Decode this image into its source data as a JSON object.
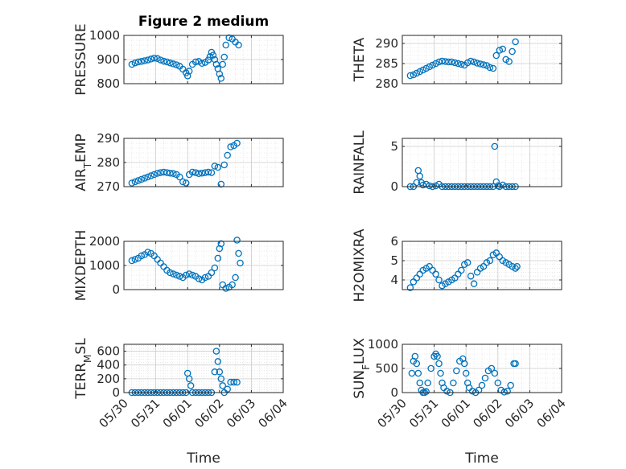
{
  "figure": {
    "marker_color": "#0072BD",
    "axis_color": "#262626",
    "grid_color": "#d9d9d9"
  },
  "x_axis": {
    "label": "Time",
    "ticks": [
      0,
      1,
      2,
      3,
      4,
      5
    ],
    "tick_labels": [
      "05/30",
      "05/31",
      "06/01",
      "06/02",
      "06/03",
      "06/04"
    ],
    "range": [
      0,
      5
    ]
  },
  "chart_data": [
    {
      "type": "scatter",
      "title": "Figure 2 medium",
      "ylabel": "PRESSURE",
      "ylim": [
        800,
        1000
      ],
      "yticks": [
        800,
        900,
        1000
      ],
      "ytick_labels": [
        "800",
        "900",
        "1000"
      ],
      "grid": true,
      "x": [
        0.25,
        0.35,
        0.45,
        0.55,
        0.65,
        0.75,
        0.85,
        0.95,
        1.05,
        1.15,
        1.25,
        1.35,
        1.45,
        1.55,
        1.65,
        1.75,
        1.85,
        1.95,
        2.0,
        2.05,
        2.15,
        2.25,
        2.35,
        2.45,
        2.55,
        2.65,
        2.7,
        2.75,
        2.8,
        2.85,
        2.9,
        2.95,
        3.0,
        3.05,
        3.1,
        3.15,
        3.2,
        3.3,
        3.4,
        3.5,
        3.6
      ],
      "y": [
        880,
        886,
        890,
        892,
        895,
        898,
        902,
        906,
        904,
        898,
        893,
        890,
        886,
        882,
        878,
        872,
        860,
        845,
        832,
        852,
        880,
        890,
        892,
        884,
        888,
        898,
        912,
        930,
        918,
        900,
        880,
        862,
        840,
        822,
        880,
        910,
        960,
        990,
        985,
        972,
        960
      ]
    },
    {
      "type": "scatter",
      "ylabel": "THETA",
      "ylim": [
        280,
        292
      ],
      "yticks": [
        280,
        285,
        290
      ],
      "ytick_labels": [
        "280",
        "285",
        "290"
      ],
      "grid": true,
      "x": [
        0.25,
        0.35,
        0.45,
        0.55,
        0.65,
        0.75,
        0.85,
        0.95,
        1.05,
        1.15,
        1.25,
        1.35,
        1.45,
        1.55,
        1.65,
        1.75,
        1.85,
        1.95,
        2.05,
        2.15,
        2.25,
        2.35,
        2.45,
        2.55,
        2.65,
        2.75,
        2.85,
        2.95,
        3.05,
        3.15,
        3.25,
        3.35,
        3.45,
        3.55
      ],
      "y": [
        282,
        282.2,
        282.6,
        283,
        283.4,
        283.8,
        284.2,
        284.6,
        285,
        285.4,
        285.6,
        285.5,
        285.4,
        285.4,
        285.2,
        285,
        284.8,
        284.6,
        285.2,
        285.6,
        285.4,
        285.1,
        284.9,
        284.7,
        284.5,
        284,
        283.8,
        287,
        288.3,
        288.6,
        286,
        285.5,
        288,
        290.4
      ]
    },
    {
      "type": "scatter",
      "ylabel": "AIR_TEMP",
      "ylim": [
        270,
        290
      ],
      "yticks": [
        270,
        280,
        290
      ],
      "ytick_labels": [
        "270",
        "280",
        "290"
      ],
      "grid": true,
      "x": [
        0.25,
        0.35,
        0.45,
        0.55,
        0.65,
        0.75,
        0.85,
        0.95,
        1.05,
        1.15,
        1.25,
        1.35,
        1.45,
        1.55,
        1.65,
        1.75,
        1.85,
        1.95,
        2.05,
        2.15,
        2.25,
        2.35,
        2.45,
        2.55,
        2.65,
        2.75,
        2.85,
        2.95,
        3.05,
        3.15,
        3.25,
        3.35,
        3.45,
        3.55
      ],
      "y": [
        271.5,
        272,
        272.5,
        273,
        273.5,
        274,
        274.5,
        275,
        275.5,
        275.8,
        276,
        275.8,
        275.6,
        275.4,
        275,
        274,
        272,
        271.5,
        275,
        276,
        275.8,
        275.4,
        275.6,
        275.8,
        276,
        275.8,
        278.5,
        278,
        271,
        279,
        283,
        286.5,
        287,
        288
      ]
    },
    {
      "type": "scatter",
      "ylabel": "RAINFALL",
      "ylim": [
        0,
        6
      ],
      "yticks": [
        0,
        5
      ],
      "ytick_labels": [
        "0",
        "5"
      ],
      "grid": true,
      "x": [
        0.25,
        0.35,
        0.45,
        0.5,
        0.55,
        0.6,
        0.65,
        0.75,
        0.85,
        0.95,
        1.05,
        1.15,
        1.25,
        1.35,
        1.45,
        1.55,
        1.65,
        1.75,
        1.85,
        1.95,
        2.05,
        2.15,
        2.25,
        2.35,
        2.45,
        2.55,
        2.65,
        2.75,
        2.85,
        2.9,
        2.95,
        3.0,
        3.05,
        3.15,
        3.25,
        3.35,
        3.45,
        3.55
      ],
      "y": [
        0,
        0,
        0.5,
        2,
        1.3,
        0.5,
        0.2,
        0.3,
        0.1,
        0,
        0.1,
        0.3,
        0,
        0,
        0,
        0,
        0,
        0,
        0,
        0,
        0,
        0,
        0,
        0,
        0,
        0,
        0,
        0,
        0,
        5,
        0.6,
        0.1,
        0,
        0.2,
        0,
        0,
        0,
        0
      ]
    },
    {
      "type": "scatter",
      "ylabel": "MIXDEPTH",
      "ylim": [
        0,
        2000
      ],
      "yticks": [
        0,
        1000,
        2000
      ],
      "ytick_labels": [
        "0",
        "1000",
        "2000"
      ],
      "grid": true,
      "x": [
        0.25,
        0.35,
        0.45,
        0.55,
        0.65,
        0.75,
        0.85,
        0.95,
        1.05,
        1.15,
        1.25,
        1.35,
        1.45,
        1.55,
        1.65,
        1.75,
        1.85,
        1.95,
        2.05,
        2.15,
        2.25,
        2.35,
        2.45,
        2.55,
        2.65,
        2.75,
        2.85,
        2.95,
        3.0,
        3.05,
        3.1,
        3.2,
        3.3,
        3.4,
        3.5,
        3.55,
        3.6,
        3.65
      ],
      "y": [
        1200,
        1250,
        1300,
        1400,
        1450,
        1550,
        1500,
        1400,
        1250,
        1100,
        950,
        800,
        700,
        650,
        600,
        550,
        500,
        600,
        650,
        600,
        550,
        450,
        400,
        500,
        550,
        700,
        900,
        1300,
        1700,
        1900,
        200,
        50,
        100,
        200,
        500,
        2050,
        1500,
        1100
      ]
    },
    {
      "type": "scatter",
      "ylabel": "H2OMIXRA",
      "ylim": [
        3.5,
        6
      ],
      "yticks": [
        4,
        5,
        6
      ],
      "ytick_labels": [
        "4",
        "5",
        "6"
      ],
      "grid": true,
      "x": [
        0.25,
        0.35,
        0.45,
        0.55,
        0.65,
        0.75,
        0.85,
        0.95,
        1.05,
        1.15,
        1.25,
        1.35,
        1.45,
        1.55,
        1.65,
        1.75,
        1.85,
        1.95,
        2.05,
        2.15,
        2.25,
        2.35,
        2.45,
        2.55,
        2.65,
        2.75,
        2.85,
        2.95,
        3.05,
        3.15,
        3.25,
        3.35,
        3.45,
        3.55,
        3.6
      ],
      "y": [
        3.6,
        3.9,
        4.1,
        4.3,
        4.5,
        4.6,
        4.7,
        4.5,
        4.3,
        4.0,
        3.7,
        3.8,
        3.9,
        4.0,
        4.1,
        4.3,
        4.5,
        4.8,
        4.9,
        4.2,
        3.8,
        4.4,
        4.6,
        4.7,
        4.9,
        5.0,
        5.3,
        5.4,
        5.2,
        5.0,
        4.9,
        4.8,
        4.7,
        4.6,
        4.7
      ]
    },
    {
      "type": "scatter",
      "ylabel": "TERR_MSL",
      "ylim": [
        0,
        700
      ],
      "yticks": [
        0,
        200,
        400,
        600
      ],
      "ytick_labels": [
        "0",
        "200",
        "400",
        "600"
      ],
      "grid": true,
      "x": [
        0.25,
        0.35,
        0.45,
        0.55,
        0.65,
        0.75,
        0.85,
        0.95,
        1.05,
        1.15,
        1.25,
        1.35,
        1.45,
        1.55,
        1.65,
        1.75,
        1.85,
        1.95,
        2.0,
        2.05,
        2.1,
        2.15,
        2.25,
        2.35,
        2.45,
        2.55,
        2.65,
        2.75,
        2.85,
        2.9,
        2.95,
        3.0,
        3.05,
        3.1,
        3.15,
        3.25,
        3.35,
        3.45,
        3.55
      ],
      "y": [
        0,
        0,
        0,
        0,
        0,
        0,
        0,
        0,
        0,
        0,
        0,
        0,
        0,
        0,
        0,
        0,
        0,
        0,
        280,
        200,
        100,
        0,
        0,
        0,
        0,
        0,
        0,
        0,
        300,
        600,
        450,
        300,
        200,
        100,
        0,
        50,
        150,
        150,
        150
      ]
    },
    {
      "type": "scatter",
      "ylabel": "SUN_FLUX",
      "ylim": [
        0,
        1000
      ],
      "yticks": [
        0,
        500,
        1000
      ],
      "ytick_labels": [
        "0",
        "500",
        "1000"
      ],
      "grid": true,
      "x": [
        0.3,
        0.35,
        0.4,
        0.45,
        0.5,
        0.55,
        0.6,
        0.65,
        0.7,
        0.75,
        0.8,
        0.9,
        1.0,
        1.05,
        1.1,
        1.15,
        1.2,
        1.25,
        1.3,
        1.4,
        1.5,
        1.6,
        1.7,
        1.8,
        1.9,
        1.95,
        2.0,
        2.05,
        2.1,
        2.2,
        2.3,
        2.4,
        2.5,
        2.6,
        2.7,
        2.8,
        2.9,
        3.0,
        3.1,
        3.2,
        3.3,
        3.4,
        3.5,
        3.55
      ],
      "y": [
        400,
        650,
        750,
        600,
        400,
        200,
        50,
        0,
        0,
        20,
        200,
        500,
        750,
        800,
        750,
        600,
        400,
        200,
        100,
        30,
        0,
        200,
        450,
        650,
        700,
        600,
        400,
        200,
        100,
        30,
        0,
        50,
        150,
        300,
        450,
        500,
        400,
        200,
        50,
        10,
        30,
        150,
        600,
        600
      ]
    }
  ]
}
